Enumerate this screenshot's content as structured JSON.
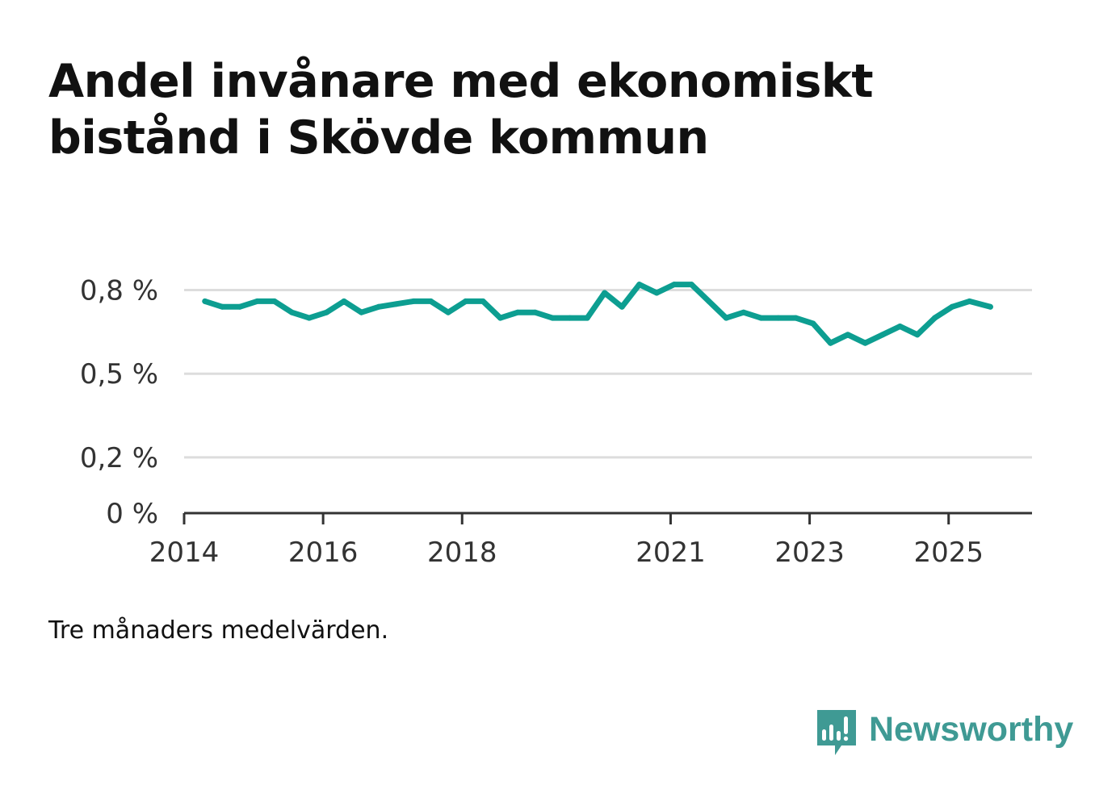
{
  "title_lines": [
    "Andel invånare med ekonomiskt",
    "bistånd i Skövde kommun"
  ],
  "footnote": "Tre månaders medelvärden.",
  "brand": {
    "name": "Newsworthy",
    "icon": "newsworthy-chart-logo-icon"
  },
  "colors": {
    "line": "#0d9e91",
    "grid": "#dddddd",
    "axis": "#333333",
    "brand": "#3f9a94"
  },
  "chart_data": {
    "type": "line",
    "title": "Andel invånare med ekonomiskt bistånd i Skövde kommun",
    "xlabel": "",
    "ylabel": "",
    "xlim": [
      2014,
      2026.2
    ],
    "ylim": [
      0,
      0.9
    ],
    "y_ticks": [
      0,
      0.2,
      0.5,
      0.8
    ],
    "y_tick_labels": [
      "0 %",
      "0,2 %",
      "0,5 %",
      "0,8 %"
    ],
    "x_ticks": [
      2014,
      2016,
      2018,
      2021,
      2023,
      2025
    ],
    "x_tick_labels": [
      "2014",
      "2016",
      "2018",
      "2021",
      "2023",
      "2025"
    ],
    "grid": true,
    "series": [
      {
        "name": "Andel invånare med ekonomiskt bistånd",
        "x": [
          2014.3,
          2014.55,
          2014.8,
          2015.05,
          2015.3,
          2015.55,
          2015.8,
          2016.05,
          2016.3,
          2016.55,
          2016.8,
          2017.05,
          2017.3,
          2017.55,
          2017.8,
          2018.05,
          2018.3,
          2018.55,
          2018.8,
          2019.05,
          2019.3,
          2019.55,
          2019.8,
          2020.05,
          2020.3,
          2020.55,
          2020.8,
          2021.05,
          2021.3,
          2021.55,
          2021.8,
          2022.05,
          2022.3,
          2022.55,
          2022.8,
          2023.05,
          2023.3,
          2023.55,
          2023.8,
          2024.05,
          2024.3,
          2024.55,
          2024.8,
          2025.05,
          2025.3,
          2025.6
        ],
        "values": [
          0.76,
          0.74,
          0.74,
          0.76,
          0.76,
          0.72,
          0.7,
          0.72,
          0.76,
          0.72,
          0.74,
          0.75,
          0.76,
          0.76,
          0.72,
          0.76,
          0.76,
          0.7,
          0.72,
          0.72,
          0.7,
          0.7,
          0.7,
          0.79,
          0.74,
          0.82,
          0.79,
          0.82,
          0.82,
          0.76,
          0.7,
          0.72,
          0.7,
          0.7,
          0.7,
          0.68,
          0.61,
          0.64,
          0.61,
          0.64,
          0.67,
          0.64,
          0.7,
          0.74,
          0.76,
          0.74
        ]
      }
    ]
  }
}
